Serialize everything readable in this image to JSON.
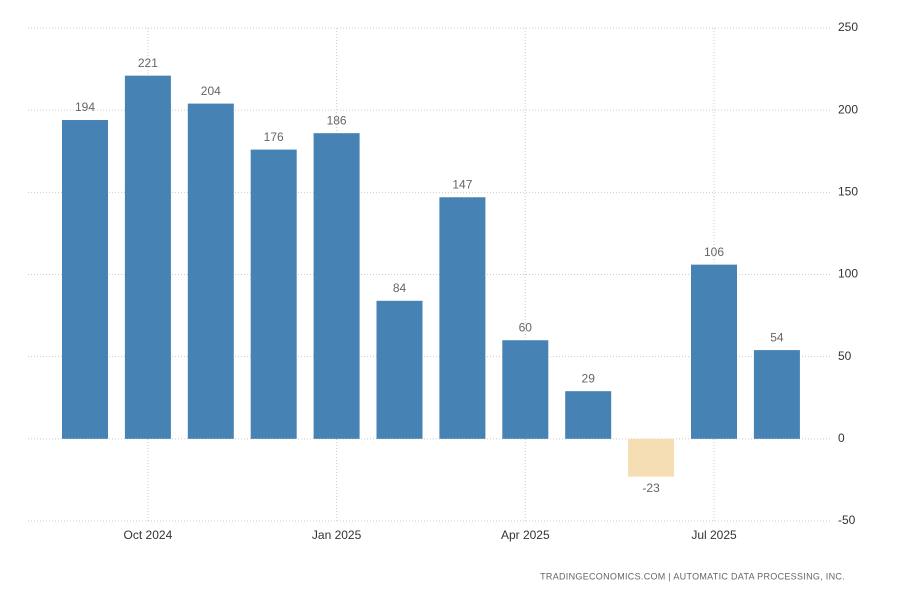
{
  "chart_data": {
    "type": "bar",
    "categories": [
      null,
      "Oct 2024",
      null,
      null,
      "Jan 2025",
      null,
      null,
      "Apr 2025",
      null,
      null,
      "Jul 2025",
      null
    ],
    "values": [
      194,
      221,
      204,
      176,
      186,
      84,
      147,
      60,
      29,
      -23,
      106,
      54
    ],
    "color": "#4682b4",
    "negative_color": "#f5deb3",
    "ylim": [
      -50,
      250
    ],
    "yticks": [
      -50,
      0,
      50,
      100,
      150,
      200,
      250
    ],
    "grid": true,
    "source": "TRADINGECONOMICS.COM | AUTOMATIC DATA PROCESSING, INC."
  }
}
